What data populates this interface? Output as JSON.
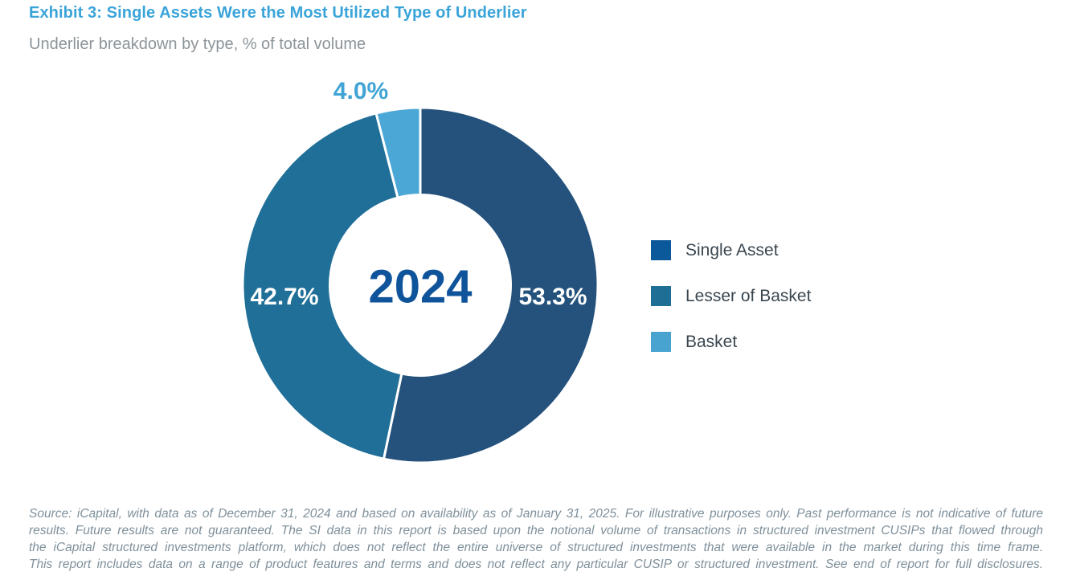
{
  "header": {
    "title": "Exhibit 3: Single Assets Were the Most Utilized Type of Underlier",
    "subtitle": "Underlier breakdown by type, % of total volume"
  },
  "chart_data": {
    "type": "pie",
    "variant": "donut",
    "title": "Underlier breakdown by type, % of total volume",
    "center_label": "2024",
    "start_angle_deg": 0,
    "direction": "clockwise",
    "legend_position": "right",
    "slices": [
      {
        "label": "Single Asset",
        "value": 53.3,
        "display": "53.3%",
        "color": "#24527D",
        "label_color": "#FFFFFF",
        "label_placement": "inside-right"
      },
      {
        "label": "Lesser of Basket",
        "value": 42.7,
        "display": "42.7%",
        "color": "#1F6F98",
        "label_color": "#FFFFFF",
        "label_placement": "inside-left"
      },
      {
        "label": "Basket",
        "value": 4.0,
        "display": "4.0%",
        "color": "#4BA7D6",
        "label_color": "#41A4D5",
        "label_placement": "outside-top"
      }
    ]
  },
  "legend": {
    "items": [
      {
        "label": "Single Asset",
        "color": "#0B589B"
      },
      {
        "label": "Lesser of Basket",
        "color": "#1F6E96"
      },
      {
        "label": "Basket",
        "color": "#48A3D0"
      }
    ]
  },
  "footer": {
    "lines": [
      "Source: iCapital, with data as of December 31, 2024 and based on availability as of January 31, 2025. For illustrative purposes only. Past performance is not indicative of future",
      "results. Future results are not guaranteed. The SI data in this report is based upon the notional volume of transactions in structured investment CUSIPs that flowed through",
      "the iCapital structured investments platform, which does not reflect the entire universe of structured investments that were available in the market during this time frame.",
      "This report includes data on a range of product features and terms and does not reflect any particular CUSIP or structured investment. See end of report for full disclosures."
    ]
  },
  "colors": {
    "title": "#3AA4D9",
    "subtitle": "#8C9499",
    "center_year": "#0F549B",
    "legend_text": "#3A4750",
    "footer_text": "#7F909B",
    "slice_divider": "#FFFFFF"
  }
}
